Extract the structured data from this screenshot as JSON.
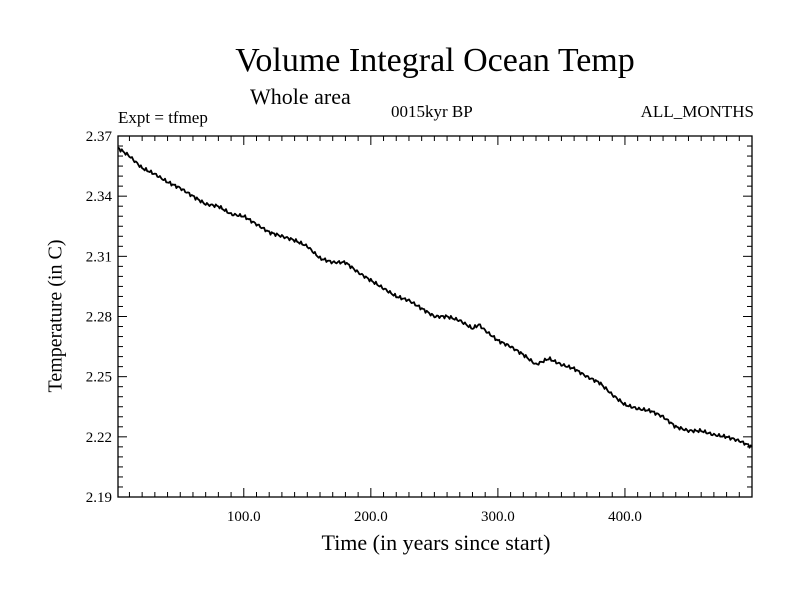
{
  "chart_data": {
    "type": "line",
    "title": "Volume Integral Ocean Temp",
    "subtitle": "Whole area",
    "annotations": {
      "left": "Expt = tfmep",
      "center": "0015kyr BP",
      "right": "ALL_MONTHS"
    },
    "xlabel": "Time (in years since start)",
    "ylabel": "Temperature (in C)",
    "xlim": [
      1,
      500
    ],
    "ylim": [
      2.19,
      2.37
    ],
    "x_ticks": [
      100,
      200,
      300,
      400
    ],
    "x_tick_labels": [
      "100.0",
      "200.0",
      "300.0",
      "400.0"
    ],
    "y_ticks": [
      2.19,
      2.22,
      2.25,
      2.28,
      2.31,
      2.34,
      2.37
    ],
    "y_tick_labels": [
      "2.19",
      "2.22",
      "2.25",
      "2.28",
      "2.31",
      "2.34",
      "2.37"
    ],
    "grid": false,
    "series": [
      {
        "color": "#000000",
        "x": [
          1,
          10,
          20,
          30,
          40,
          50,
          60,
          70,
          80,
          90,
          100,
          110,
          120,
          130,
          140,
          150,
          160,
          170,
          180,
          190,
          200,
          210,
          220,
          230,
          240,
          250,
          260,
          270,
          280,
          285,
          290,
          300,
          310,
          320,
          330,
          340,
          350,
          360,
          370,
          380,
          390,
          400,
          410,
          420,
          430,
          440,
          450,
          460,
          470,
          480,
          490,
          500
        ],
        "values": [
          2.364,
          2.36,
          2.354,
          2.351,
          2.347,
          2.344,
          2.34,
          2.336,
          2.335,
          2.331,
          2.33,
          2.326,
          2.322,
          2.32,
          2.318,
          2.315,
          2.309,
          2.307,
          2.307,
          2.302,
          2.298,
          2.294,
          2.29,
          2.288,
          2.284,
          2.28,
          2.28,
          2.278,
          2.274,
          2.276,
          2.273,
          2.268,
          2.265,
          2.261,
          2.256,
          2.259,
          2.256,
          2.254,
          2.25,
          2.247,
          2.241,
          2.236,
          2.234,
          2.233,
          2.23,
          2.225,
          2.223,
          2.223,
          2.221,
          2.22,
          2.218,
          2.215
        ]
      }
    ]
  }
}
